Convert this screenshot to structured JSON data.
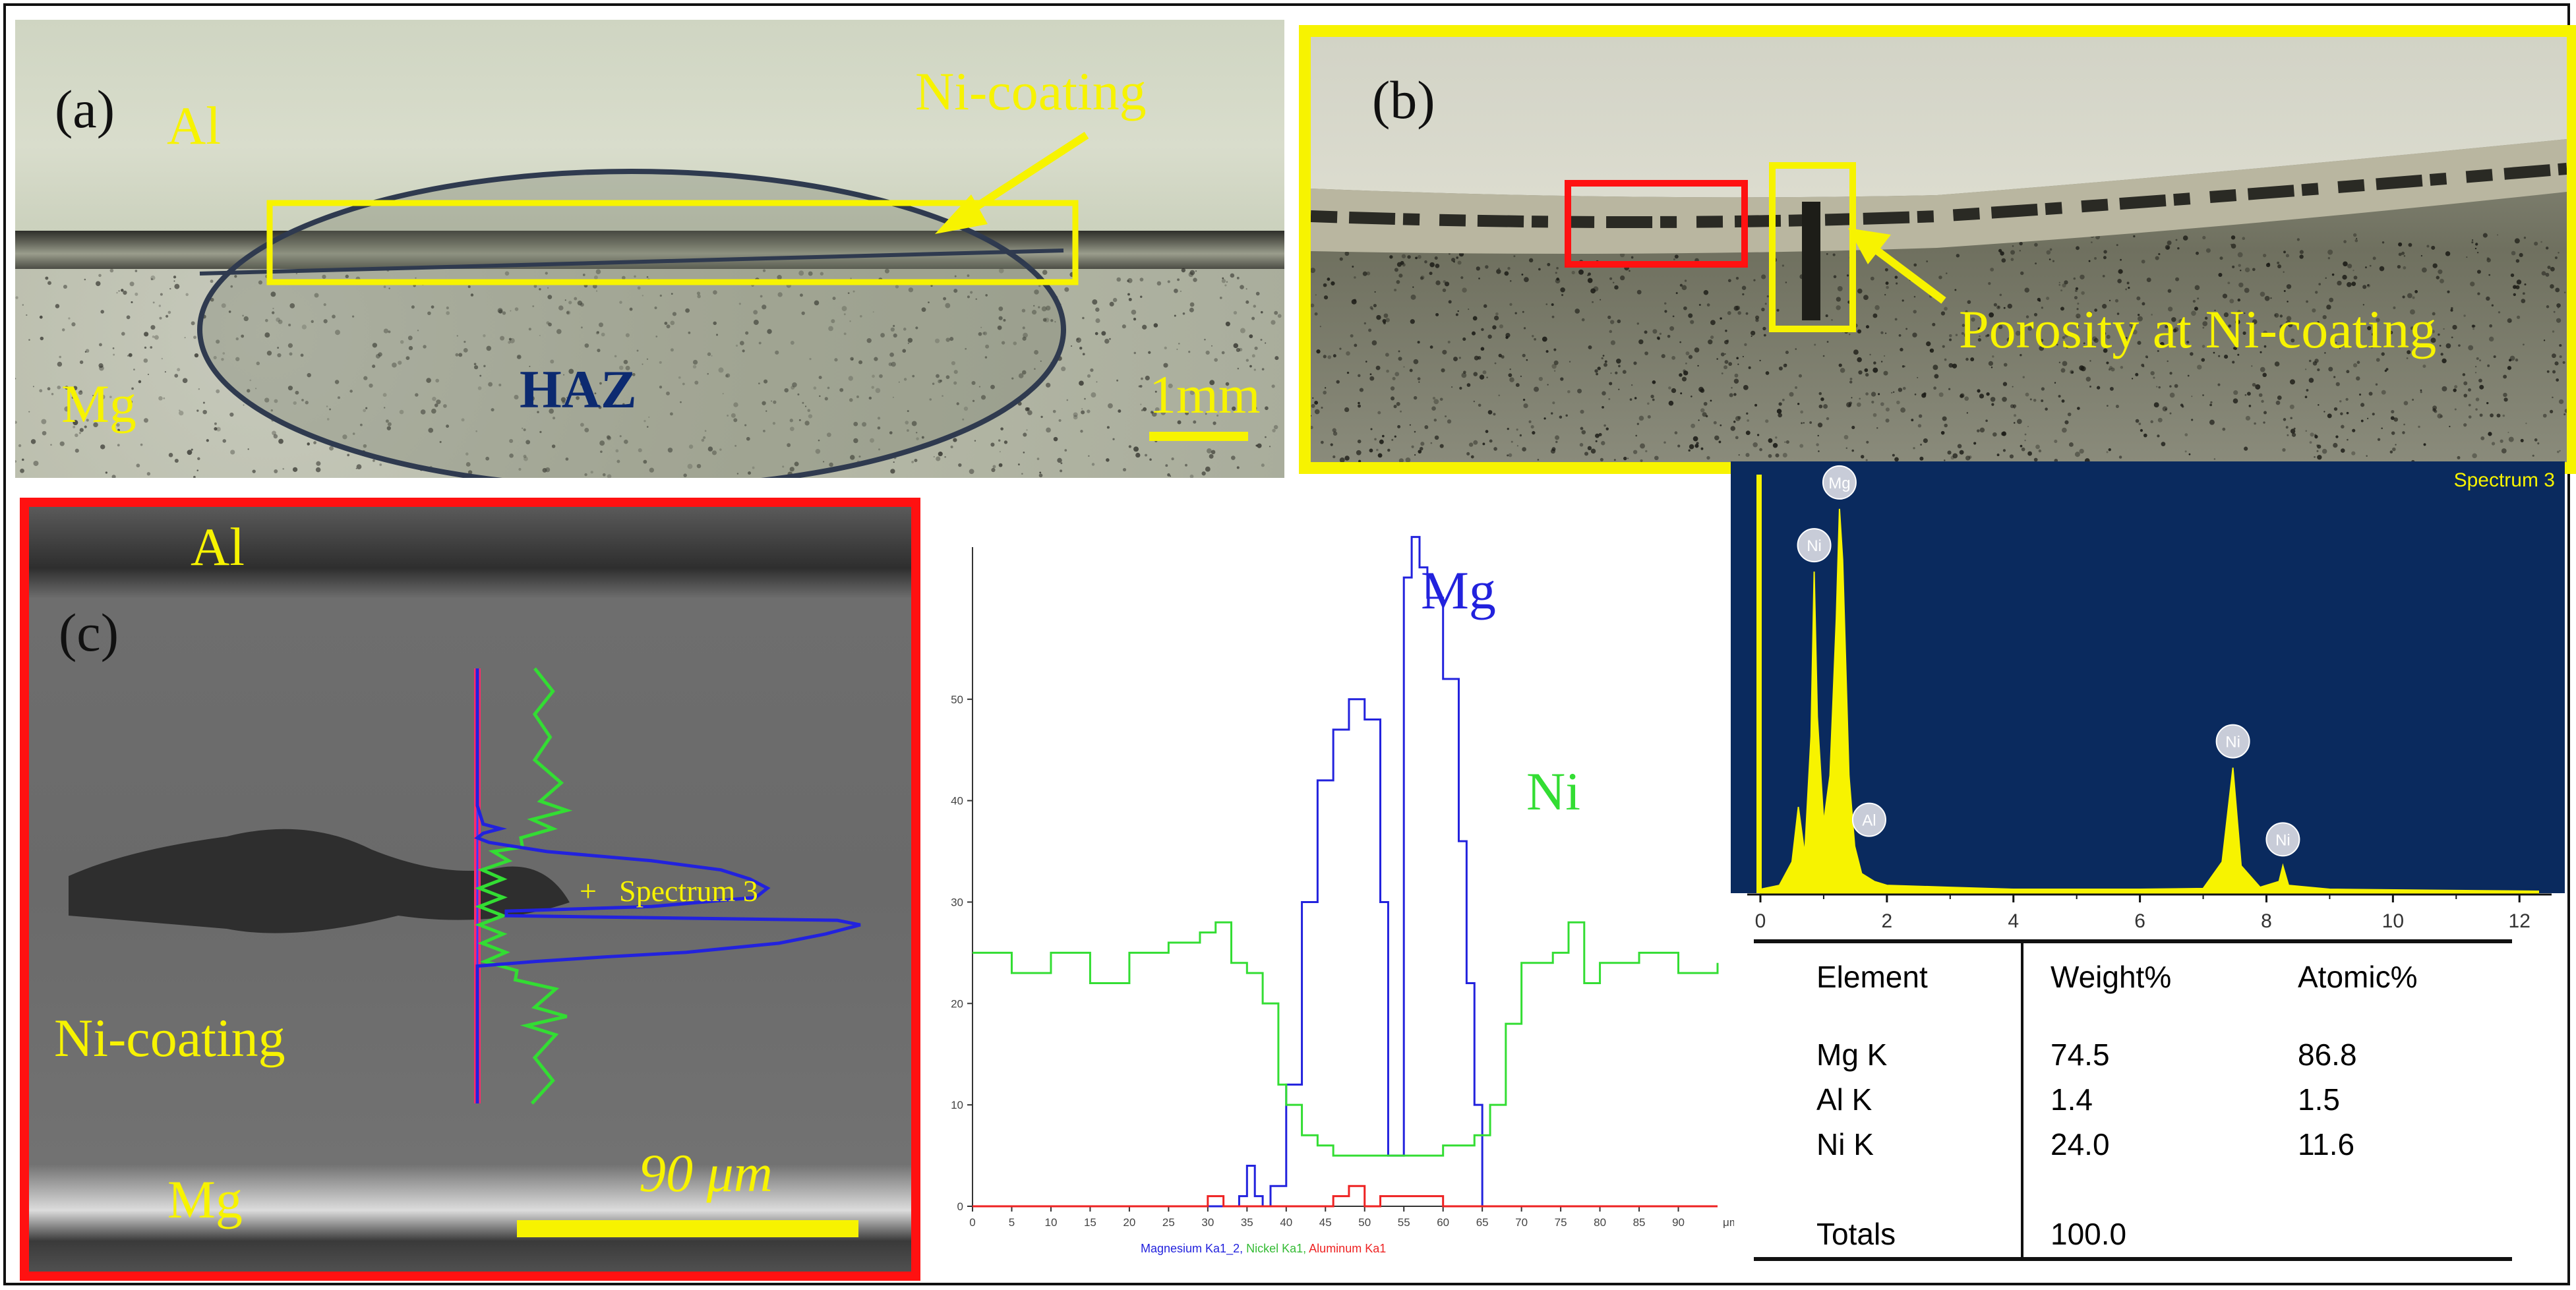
{
  "panel_a": {
    "label": "(a)",
    "al": "Al",
    "mg": "Mg",
    "ni_coating": "Ni-coating",
    "haz": "HAZ",
    "scale": "1mm"
  },
  "panel_b": {
    "label": "(b)",
    "porosity": "Porosity at Ni-coating"
  },
  "panel_c": {
    "label": "(c)",
    "al": "Al",
    "mg": "Mg",
    "ni_coating": "Ni-coating",
    "spectrum": "Spectrum 3",
    "spectrum_marker": "+",
    "scale": "90 μm"
  },
  "linescan": {
    "label_mg": "Mg",
    "label_ni": "Ni",
    "unit": "μm",
    "legend_mg": "Magnesium Ka1_2",
    "legend_ni": "Nickel Ka1",
    "legend_al": "Aluminum Ka1",
    "legend_sep": ", ",
    "colors": {
      "mg": "#2222dd",
      "ni": "#33dd33",
      "al": "#ee2222"
    }
  },
  "chart_data": [
    {
      "type": "line",
      "title": "",
      "xlabel": "μm",
      "ylabel": "",
      "xlim": [
        0,
        95
      ],
      "ylim": [
        0,
        65
      ],
      "x_ticks": [
        0,
        5,
        10,
        15,
        20,
        25,
        30,
        35,
        40,
        45,
        50,
        55,
        60,
        65,
        70,
        75,
        80,
        85,
        90
      ],
      "y_ticks": [
        0,
        10,
        20,
        30,
        40,
        50
      ],
      "grid": false,
      "series": [
        {
          "name": "Magnesium Ka1_2",
          "x": [
            0,
            30,
            34,
            35,
            36,
            37,
            38,
            40,
            42,
            44,
            46,
            48,
            50,
            52,
            53,
            54,
            55,
            56,
            57,
            58,
            60,
            62,
            63,
            64,
            65,
            70,
            95
          ],
          "values": [
            0,
            0,
            1,
            4,
            1,
            0,
            2,
            12,
            30,
            42,
            47,
            50,
            48,
            30,
            5,
            5,
            62,
            66,
            63,
            60,
            52,
            36,
            22,
            10,
            0,
            0,
            0
          ]
        },
        {
          "name": "Nickel Ka1",
          "x": [
            0,
            5,
            10,
            15,
            20,
            25,
            29,
            31,
            33,
            35,
            37,
            39,
            40,
            42,
            44,
            46,
            48,
            50,
            52,
            54,
            56,
            58,
            60,
            62,
            64,
            66,
            68,
            70,
            74,
            76,
            78,
            80,
            85,
            90,
            95
          ],
          "values": [
            25,
            23,
            25,
            22,
            25,
            26,
            27,
            28,
            24,
            23,
            20,
            12,
            10,
            7,
            6,
            5,
            5,
            5,
            5,
            5,
            5,
            5,
            6,
            6,
            7,
            10,
            18,
            24,
            25,
            28,
            22,
            24,
            25,
            23,
            24
          ]
        },
        {
          "name": "Aluminum Ka1",
          "x": [
            0,
            10,
            20,
            28,
            30,
            32,
            40,
            46,
            48,
            50,
            52,
            60,
            70,
            80,
            95
          ],
          "values": [
            0,
            0,
            0,
            0,
            1,
            0,
            0,
            1,
            2,
            0,
            1,
            0,
            0,
            0,
            0
          ]
        }
      ]
    },
    {
      "type": "area",
      "title": "Spectrum 3",
      "xlabel": "",
      "ylabel": "",
      "xlim": [
        0,
        12.3
      ],
      "x_ticks": [
        0,
        2,
        4,
        6,
        8,
        10,
        12
      ],
      "peaks": [
        {
          "label": "Ni",
          "x": 0.85
        },
        {
          "label": "Mg",
          "x": 1.25
        },
        {
          "label": "Al",
          "x": 1.49
        },
        {
          "label": "Ni",
          "x": 7.47
        },
        {
          "label": "Ni",
          "x": 8.26
        }
      ],
      "x": [
        0,
        0.3,
        0.5,
        0.6,
        0.7,
        0.8,
        0.85,
        0.9,
        1.0,
        1.1,
        1.2,
        1.25,
        1.3,
        1.4,
        1.49,
        1.6,
        1.8,
        2.0,
        3,
        4,
        5,
        6,
        7,
        7.3,
        7.47,
        7.6,
        7.9,
        8.2,
        8.26,
        8.35,
        9,
        12.3
      ],
      "values": [
        1,
        2,
        8,
        22,
        10,
        40,
        82,
        45,
        18,
        30,
        70,
        98,
        85,
        30,
        12,
        5,
        3,
        2,
        1.5,
        1,
        1,
        1,
        1.2,
        8,
        32,
        7,
        1.5,
        3,
        7,
        2,
        1,
        0.5
      ]
    }
  ],
  "eds_table": {
    "headers": [
      "Element",
      "Weight%",
      "Atomic%"
    ],
    "rows": [
      {
        "element": "Mg K",
        "weight": "74.5",
        "atomic": "86.8"
      },
      {
        "element": "Al K",
        "weight": "1.4",
        "atomic": "1.5"
      },
      {
        "element": "Ni K",
        "weight": "24.0",
        "atomic": "11.6"
      }
    ],
    "totals": {
      "label": "Totals",
      "weight": "100.0"
    }
  },
  "colors": {
    "yellow": "#f7f300",
    "red": "#ff1111",
    "navy": "#0a2a5e",
    "haz_text": "#0c2a70"
  }
}
